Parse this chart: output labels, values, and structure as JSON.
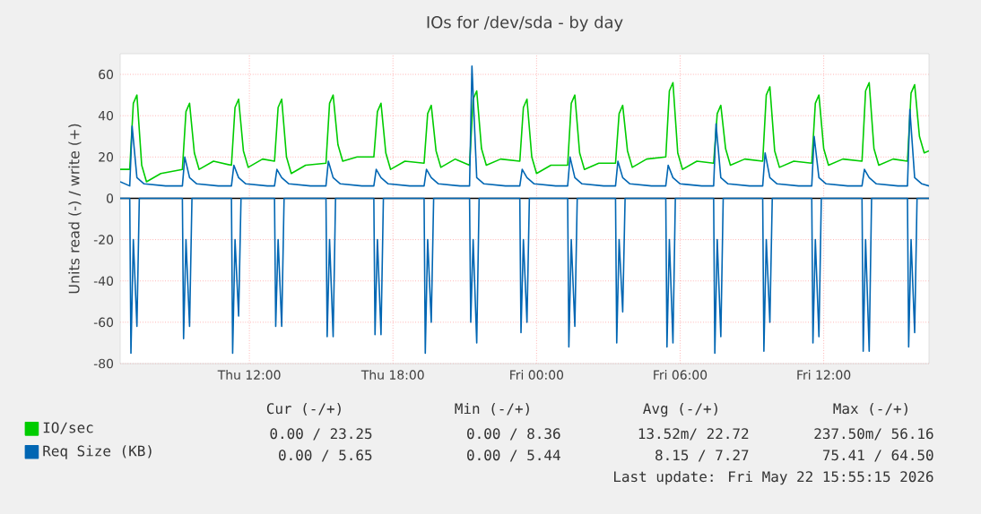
{
  "chart_data": {
    "type": "line",
    "title": "IOs for /dev/sda - by day",
    "ylabel": "Units read (-) / write (+)",
    "xlim": [
      "2026-05-21T06:36",
      "2026-05-22T16:24"
    ],
    "xticks": [
      {
        "value": "2026-05-21T12:00",
        "label": "Thu 12:00"
      },
      {
        "value": "2026-05-21T18:00",
        "label": "Thu 18:00"
      },
      {
        "value": "2026-05-22T00:00",
        "label": "Fri 00:00"
      },
      {
        "value": "2026-05-22T06:00",
        "label": "Fri 06:00"
      },
      {
        "value": "2026-05-22T12:00",
        "label": "Fri 12:00"
      }
    ],
    "ylim": [
      -80,
      70
    ],
    "yticks": [
      -80,
      -60,
      -40,
      -20,
      0,
      20,
      40,
      60
    ],
    "grid": true,
    "legend": "bottom left",
    "marker": "none",
    "line_style": "solid",
    "ref_lines": [
      {
        "axis": "y",
        "value": 0,
        "color": "#000000"
      }
    ],
    "series": [
      {
        "name": "IO/sec",
        "color": "#00cc00",
        "x": [
          "2026-05-21T06:36",
          "2026-05-21T07:00",
          "2026-05-21T07:09",
          "2026-05-21T07:18",
          "2026-05-21T07:30",
          "2026-05-21T07:42",
          "2026-05-21T08:18",
          "2026-05-21T09:12",
          "2026-05-21T09:21",
          "2026-05-21T09:30",
          "2026-05-21T09:42",
          "2026-05-21T09:54",
          "2026-05-21T10:30",
          "2026-05-21T11:15",
          "2026-05-21T11:24",
          "2026-05-21T11:33",
          "2026-05-21T11:45",
          "2026-05-21T11:57",
          "2026-05-21T12:33",
          "2026-05-21T13:03",
          "2026-05-21T13:12",
          "2026-05-21T13:21",
          "2026-05-21T13:33",
          "2026-05-21T13:45",
          "2026-05-21T14:21",
          "2026-05-21T15:12",
          "2026-05-21T15:21",
          "2026-05-21T15:30",
          "2026-05-21T15:42",
          "2026-05-21T15:54",
          "2026-05-21T16:30",
          "2026-05-21T17:12",
          "2026-05-21T17:21",
          "2026-05-21T17:30",
          "2026-05-21T17:42",
          "2026-05-21T17:54",
          "2026-05-21T18:30",
          "2026-05-21T19:18",
          "2026-05-21T19:27",
          "2026-05-21T19:36",
          "2026-05-21T19:48",
          "2026-05-21T20:00",
          "2026-05-21T20:36",
          "2026-05-21T21:12",
          "2026-05-21T21:21",
          "2026-05-21T21:30",
          "2026-05-21T21:42",
          "2026-05-21T21:54",
          "2026-05-21T22:30",
          "2026-05-21T23:18",
          "2026-05-21T23:27",
          "2026-05-21T23:36",
          "2026-05-21T23:48",
          "2026-05-22T00:00",
          "2026-05-22T00:36",
          "2026-05-22T01:18",
          "2026-05-22T01:27",
          "2026-05-22T01:36",
          "2026-05-22T01:48",
          "2026-05-22T02:00",
          "2026-05-22T02:36",
          "2026-05-22T03:18",
          "2026-05-22T03:27",
          "2026-05-22T03:36",
          "2026-05-22T03:48",
          "2026-05-22T04:00",
          "2026-05-22T04:36",
          "2026-05-22T05:24",
          "2026-05-22T05:33",
          "2026-05-22T05:42",
          "2026-05-22T05:54",
          "2026-05-22T06:06",
          "2026-05-22T06:42",
          "2026-05-22T07:24",
          "2026-05-22T07:33",
          "2026-05-22T07:42",
          "2026-05-22T07:54",
          "2026-05-22T08:06",
          "2026-05-22T08:42",
          "2026-05-22T09:27",
          "2026-05-22T09:36",
          "2026-05-22T09:45",
          "2026-05-22T09:57",
          "2026-05-22T10:09",
          "2026-05-22T10:45",
          "2026-05-22T11:30",
          "2026-05-22T11:39",
          "2026-05-22T11:48",
          "2026-05-22T12:00",
          "2026-05-22T12:12",
          "2026-05-22T12:48",
          "2026-05-22T13:36",
          "2026-05-22T13:45",
          "2026-05-22T13:54",
          "2026-05-22T14:06",
          "2026-05-22T14:18",
          "2026-05-22T14:54",
          "2026-05-22T15:30",
          "2026-05-22T15:39",
          "2026-05-22T15:48",
          "2026-05-22T16:00",
          "2026-05-22T16:12",
          "2026-05-22T16:24"
        ],
        "values": [
          14,
          14,
          46,
          50,
          16,
          8,
          12,
          14,
          42,
          46,
          22,
          14,
          18,
          16,
          44,
          48,
          23,
          15,
          19,
          18,
          44,
          48,
          20,
          12,
          16,
          17,
          46,
          50,
          26,
          18,
          20,
          20,
          42,
          46,
          22,
          14,
          18,
          17,
          41,
          45,
          23,
          15,
          19,
          16,
          48,
          52,
          24,
          16,
          19,
          18,
          44,
          48,
          20,
          12,
          16,
          16,
          46,
          50,
          22,
          14,
          17,
          17,
          41,
          45,
          23,
          15,
          19,
          20,
          52,
          56,
          22,
          14,
          18,
          17,
          41,
          45,
          24,
          16,
          19,
          18,
          50,
          54,
          23,
          15,
          18,
          17,
          46,
          50,
          24,
          16,
          19,
          18,
          52,
          56,
          24,
          16,
          19,
          18,
          51,
          55,
          30,
          22,
          23
        ]
      },
      {
        "name": "Req Size (KB)",
        "color": "#0066b3",
        "x": [
          "2026-05-21T06:36",
          "2026-05-21T07:00",
          "2026-05-21T07:06",
          "2026-05-21T07:18",
          "2026-05-21T07:36",
          "2026-05-21T08:30",
          "2026-05-21T09:12",
          "2026-05-21T09:18",
          "2026-05-21T09:30",
          "2026-05-21T09:48",
          "2026-05-21T10:42",
          "2026-05-21T11:15",
          "2026-05-21T11:21",
          "2026-05-21T11:33",
          "2026-05-21T11:51",
          "2026-05-21T12:45",
          "2026-05-21T13:03",
          "2026-05-21T13:09",
          "2026-05-21T13:21",
          "2026-05-21T13:39",
          "2026-05-21T14:33",
          "2026-05-21T15:12",
          "2026-05-21T15:18",
          "2026-05-21T15:30",
          "2026-05-21T15:48",
          "2026-05-21T16:42",
          "2026-05-21T17:12",
          "2026-05-21T17:18",
          "2026-05-21T17:30",
          "2026-05-21T17:48",
          "2026-05-21T18:42",
          "2026-05-21T19:18",
          "2026-05-21T19:24",
          "2026-05-21T19:36",
          "2026-05-21T19:54",
          "2026-05-21T20:48",
          "2026-05-21T21:12",
          "2026-05-21T21:18",
          "2026-05-21T21:30",
          "2026-05-21T21:48",
          "2026-05-21T22:42",
          "2026-05-21T23:18",
          "2026-05-21T23:24",
          "2026-05-21T23:36",
          "2026-05-21T23:54",
          "2026-05-22T00:48",
          "2026-05-22T01:18",
          "2026-05-22T01:24",
          "2026-05-22T01:36",
          "2026-05-22T01:54",
          "2026-05-22T02:48",
          "2026-05-22T03:18",
          "2026-05-22T03:24",
          "2026-05-22T03:36",
          "2026-05-22T03:54",
          "2026-05-22T04:48",
          "2026-05-22T05:24",
          "2026-05-22T05:30",
          "2026-05-22T05:42",
          "2026-05-22T06:00",
          "2026-05-22T06:54",
          "2026-05-22T07:24",
          "2026-05-22T07:30",
          "2026-05-22T07:42",
          "2026-05-22T08:00",
          "2026-05-22T08:54",
          "2026-05-22T09:27",
          "2026-05-22T09:33",
          "2026-05-22T09:45",
          "2026-05-22T10:03",
          "2026-05-22T10:57",
          "2026-05-22T11:30",
          "2026-05-22T11:36",
          "2026-05-22T11:48",
          "2026-05-22T12:06",
          "2026-05-22T13:00",
          "2026-05-22T13:36",
          "2026-05-22T13:42",
          "2026-05-22T13:54",
          "2026-05-22T14:12",
          "2026-05-22T15:06",
          "2026-05-22T15:30",
          "2026-05-22T15:36",
          "2026-05-22T15:48",
          "2026-05-22T16:06",
          "2026-05-22T16:24"
        ],
        "values": [
          8,
          6,
          35,
          10,
          7,
          6,
          6,
          20,
          10,
          7,
          6,
          6,
          16,
          10,
          7,
          6,
          6,
          14,
          10,
          7,
          6,
          6,
          18,
          10,
          7,
          6,
          6,
          14,
          10,
          7,
          6,
          6,
          14,
          10,
          7,
          6,
          6,
          64,
          10,
          7,
          6,
          6,
          14,
          10,
          7,
          6,
          6,
          20,
          10,
          7,
          6,
          6,
          18,
          10,
          7,
          6,
          6,
          16,
          10,
          7,
          6,
          6,
          36,
          10,
          7,
          6,
          6,
          22,
          10,
          7,
          6,
          6,
          30,
          10,
          7,
          6,
          6,
          14,
          10,
          7,
          6,
          6,
          43,
          10,
          7,
          6
        ]
      },
      {
        "color": "#0066b3",
        "x": [
          "2026-05-21T06:36",
          "2026-05-21T07:00",
          "2026-05-21T07:03",
          "2026-05-21T07:09",
          "2026-05-21T07:18",
          "2026-05-21T07:24",
          "2026-05-21T09:12",
          "2026-05-21T09:15",
          "2026-05-21T09:21",
          "2026-05-21T09:30",
          "2026-05-21T09:36",
          "2026-05-21T11:15",
          "2026-05-21T11:18",
          "2026-05-21T11:24",
          "2026-05-21T11:33",
          "2026-05-21T11:39",
          "2026-05-21T13:03",
          "2026-05-21T13:06",
          "2026-05-21T13:12",
          "2026-05-21T13:21",
          "2026-05-21T13:27",
          "2026-05-21T15:12",
          "2026-05-21T15:15",
          "2026-05-21T15:21",
          "2026-05-21T15:30",
          "2026-05-21T15:36",
          "2026-05-21T17:12",
          "2026-05-21T17:15",
          "2026-05-21T17:21",
          "2026-05-21T17:30",
          "2026-05-21T17:36",
          "2026-05-21T19:18",
          "2026-05-21T19:21",
          "2026-05-21T19:27",
          "2026-05-21T19:36",
          "2026-05-21T19:42",
          "2026-05-21T21:12",
          "2026-05-21T21:15",
          "2026-05-21T21:21",
          "2026-05-21T21:30",
          "2026-05-21T21:36",
          "2026-05-21T23:18",
          "2026-05-21T23:21",
          "2026-05-21T23:27",
          "2026-05-21T23:36",
          "2026-05-21T23:42",
          "2026-05-22T01:18",
          "2026-05-22T01:21",
          "2026-05-22T01:27",
          "2026-05-22T01:36",
          "2026-05-22T01:42",
          "2026-05-22T03:18",
          "2026-05-22T03:21",
          "2026-05-22T03:27",
          "2026-05-22T03:36",
          "2026-05-22T03:42",
          "2026-05-22T05:24",
          "2026-05-22T05:27",
          "2026-05-22T05:33",
          "2026-05-22T05:42",
          "2026-05-22T05:48",
          "2026-05-22T07:24",
          "2026-05-22T07:27",
          "2026-05-22T07:33",
          "2026-05-22T07:42",
          "2026-05-22T07:48",
          "2026-05-22T09:27",
          "2026-05-22T09:30",
          "2026-05-22T09:36",
          "2026-05-22T09:45",
          "2026-05-22T09:51",
          "2026-05-22T11:30",
          "2026-05-22T11:33",
          "2026-05-22T11:39",
          "2026-05-22T11:48",
          "2026-05-22T11:54",
          "2026-05-22T13:36",
          "2026-05-22T13:39",
          "2026-05-22T13:45",
          "2026-05-22T13:54",
          "2026-05-22T14:00",
          "2026-05-22T15:30",
          "2026-05-22T15:33",
          "2026-05-22T15:39",
          "2026-05-22T15:48",
          "2026-05-22T15:54",
          "2026-05-22T16:24"
        ],
        "values": [
          0,
          0,
          -75,
          -20,
          -62,
          0,
          0,
          -68,
          -20,
          -62,
          0,
          0,
          -75,
          -20,
          -57,
          0,
          0,
          -62,
          -20,
          -62,
          0,
          0,
          -67,
          -20,
          -67,
          0,
          0,
          -66,
          -20,
          -66,
          0,
          0,
          -75,
          -20,
          -60,
          0,
          0,
          -60,
          -20,
          -70,
          0,
          0,
          -65,
          -20,
          -60,
          0,
          0,
          -72,
          -20,
          -62,
          0,
          0,
          -70,
          -20,
          -55,
          0,
          0,
          -72,
          -20,
          -70,
          0,
          0,
          -75,
          -20,
          -67,
          0,
          0,
          -74,
          -20,
          -60,
          0,
          0,
          -70,
          -20,
          -67,
          0,
          0,
          -74,
          -20,
          -74,
          0,
          0,
          -72,
          -20,
          -65,
          0,
          0
        ]
      }
    ],
    "annotations": [
      "Cur (-/+)",
      "Min (-/+)",
      "Avg (-/+)",
      "Max (-/+)",
      "0.00 / 23.25",
      "0.00 /  8.36",
      "13.52m/ 22.72",
      "237.50m/ 56.16",
      "0.00 /  5.65",
      "0.00 /  5.44",
      "8.15 /  7.27",
      "75.41 / 64.50",
      "Last update: Fri May 22 15:55:15 2026"
    ]
  }
}
